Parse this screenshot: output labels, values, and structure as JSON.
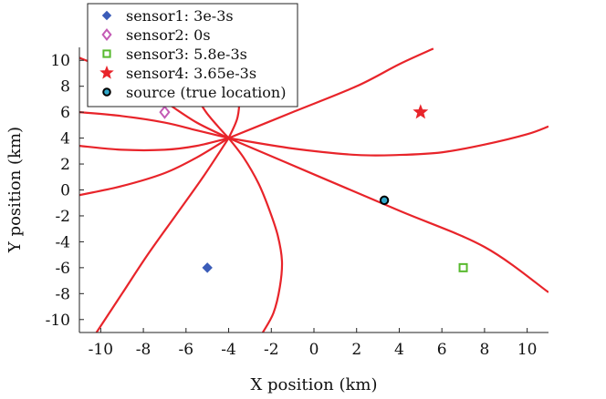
{
  "chart_data": {
    "type": "scatter",
    "title": "",
    "xlabel": "X position (km)",
    "ylabel": "Y position (km)",
    "xlim": [
      -11,
      11
    ],
    "ylim": [
      -11,
      11
    ],
    "xticks": [
      -10,
      -8,
      -6,
      -4,
      -2,
      0,
      2,
      4,
      6,
      8,
      10
    ],
    "yticks": [
      -10,
      -8,
      -6,
      -4,
      -2,
      0,
      2,
      4,
      6,
      8,
      10
    ],
    "legend_position": "top-left",
    "grid": false,
    "colors": {
      "hyperbola": "#e8242a",
      "sensor1": "#3b5cb8",
      "sensor2": "#c45bb5",
      "sensor3": "#58b92e",
      "sensor4": "#e8242a",
      "source_fill": "#2fa7c9",
      "source_edge": "#000000"
    },
    "series": [
      {
        "name": "sensor1: 3e-3s",
        "marker": "diamond-filled",
        "x": [
          -5
        ],
        "y": [
          -6
        ]
      },
      {
        "name": "sensor2: 0s",
        "marker": "diamond-open",
        "x": [
          -7
        ],
        "y": [
          6
        ]
      },
      {
        "name": "sensor3: 5.8e-3s",
        "marker": "square-open",
        "x": [
          7
        ],
        "y": [
          -6
        ]
      },
      {
        "name": "sensor4: 3.65e-3s",
        "marker": "star",
        "x": [
          5
        ],
        "y": [
          6
        ]
      },
      {
        "name": "source (true location)",
        "marker": "circle",
        "x": [
          3.3
        ],
        "y": [
          -0.8
        ]
      }
    ],
    "curves": [
      {
        "x": [
          -11,
          -9,
          -7,
          -5.5,
          -4
        ],
        "y": [
          10.2,
          8.8,
          6.8,
          5.2,
          4
        ]
      },
      {
        "x": [
          -11,
          -9,
          -7,
          -5.5,
          -4
        ],
        "y": [
          6,
          5.7,
          5.2,
          4.6,
          4
        ]
      },
      {
        "x": [
          -11,
          -9,
          -7,
          -5.5,
          -4
        ],
        "y": [
          3.4,
          3.1,
          3.1,
          3.4,
          4
        ]
      },
      {
        "x": [
          -11,
          -9,
          -7,
          -5.5,
          -4
        ],
        "y": [
          -0.4,
          0.3,
          1.3,
          2.5,
          4
        ]
      },
      {
        "x": [
          -6.5,
          -5.8,
          -5.1,
          -4.5,
          -4
        ],
        "y": [
          10.3,
          8,
          6.1,
          4.9,
          4
        ]
      },
      {
        "x": [
          -4,
          -3.6,
          -3.5,
          -3.6
        ],
        "y": [
          4,
          5.5,
          7,
          8.5
        ]
      },
      {
        "x": [
          -4,
          -3.3,
          -2.6,
          -2.1,
          -1.7,
          -1.5,
          -1.6,
          -1.9,
          -2.4
        ],
        "y": [
          4,
          2.5,
          0.5,
          -1.5,
          -3.5,
          -5.5,
          -7.5,
          -9.5,
          -11
        ]
      },
      {
        "x": [
          -4,
          -5.2,
          -6.5,
          -7.8,
          -9,
          -10.2
        ],
        "y": [
          4,
          1,
          -2,
          -5,
          -8,
          -11
        ]
      },
      {
        "x": [
          -4,
          -1,
          2,
          4,
          5.6
        ],
        "y": [
          4,
          6,
          8,
          9.7,
          10.9
        ]
      },
      {
        "x": [
          -4,
          -1,
          2,
          4,
          6,
          8,
          10,
          11
        ],
        "y": [
          4,
          3.2,
          2.7,
          2.7,
          2.9,
          3.5,
          4.3,
          4.9
        ]
      },
      {
        "x": [
          -4,
          0,
          4,
          8,
          11
        ],
        "y": [
          4,
          1.2,
          -1.6,
          -4.4,
          -7.9
        ]
      }
    ]
  }
}
